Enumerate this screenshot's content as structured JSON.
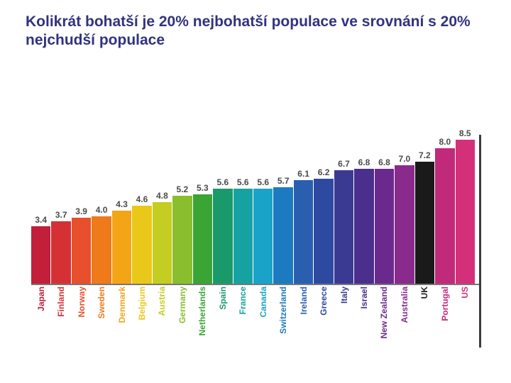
{
  "title": "Kolikrát bohatší je 20% nejbohatší populace ve srovnání s 20% nejchudší populace",
  "title_fontsize": 21,
  "title_color": "#323280",
  "chart": {
    "type": "bar",
    "ymax": 8.8,
    "value_fontsize": 12,
    "value_color": "#4a4a4a",
    "label_fontsize": 12,
    "baseline_color": "#767676",
    "right_border_color": "#3c3c3c",
    "bars": [
      {
        "country": "Japan",
        "value": 3.4,
        "color": "#c11f3a"
      },
      {
        "country": "Finland",
        "value": 3.7,
        "color": "#d53135"
      },
      {
        "country": "Norway",
        "value": 3.9,
        "color": "#e84f2d"
      },
      {
        "country": "Sweden",
        "value": 4.0,
        "color": "#ef7a1a"
      },
      {
        "country": "Denmark",
        "value": 4.3,
        "color": "#f4a516"
      },
      {
        "country": "Belgium",
        "value": 4.6,
        "color": "#eac81a"
      },
      {
        "country": "Austria",
        "value": 4.8,
        "color": "#c4cd22"
      },
      {
        "country": "Germany",
        "value": 5.2,
        "color": "#8bbe2f"
      },
      {
        "country": "Netherlands",
        "value": 5.3,
        "color": "#3aa535"
      },
      {
        "country": "Spain",
        "value": 5.6,
        "color": "#1a9a6b"
      },
      {
        "country": "France",
        "value": 5.6,
        "color": "#17a2a2"
      },
      {
        "country": "Canada",
        "value": 5.6,
        "color": "#1aa3c8"
      },
      {
        "country": "Switzerland",
        "value": 5.7,
        "color": "#1c7bc0"
      },
      {
        "country": "Ireland",
        "value": 6.1,
        "color": "#2a5fb0"
      },
      {
        "country": "Greece",
        "value": 6.2,
        "color": "#2e4aa0"
      },
      {
        "country": "Italy",
        "value": 6.7,
        "color": "#3b3a93"
      },
      {
        "country": "Israel",
        "value": 6.8,
        "color": "#4a2f8c"
      },
      {
        "country": "New Zealand",
        "value": 6.8,
        "color": "#6a2a8d"
      },
      {
        "country": "Australia",
        "value": 7.0,
        "color": "#8a2a8d"
      },
      {
        "country": "UK",
        "value": 7.2,
        "color": "#1a1a1a"
      },
      {
        "country": "Portugal",
        "value": 8.0,
        "color": "#c12a7a"
      },
      {
        "country": "US",
        "value": 8.5,
        "color": "#d4307a"
      }
    ]
  }
}
